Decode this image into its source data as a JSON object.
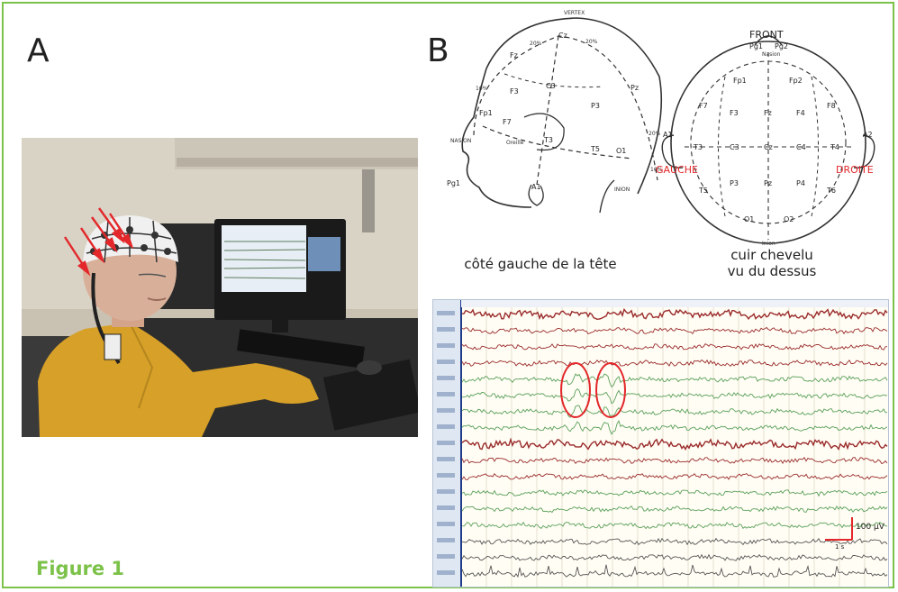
{
  "panels": {
    "a_label": "A",
    "b_label": "B"
  },
  "caption": "Figure 1",
  "side_view": {
    "caption": "côté gauche de la tête",
    "labels": [
      "VERTEX",
      "NASION",
      "INION",
      "Oreille"
    ],
    "percent_marks": [
      "10%",
      "20%",
      "20%",
      "20%",
      "10%"
    ],
    "electrodes": [
      "Fz",
      "Cz",
      "Pz",
      "F3",
      "C3",
      "P3",
      "Fp1",
      "F7",
      "T3",
      "T5",
      "O1",
      "A1",
      "Pg1"
    ]
  },
  "top_view": {
    "front_label": "FRONT",
    "left_label": "GAUCHE",
    "right_label": "DROITE",
    "caption_line1": "cuir chevelu",
    "caption_line2": "vu du dessus",
    "inion_label": "Inion",
    "nasion_label": "Nasion",
    "electrodes": [
      "Pg1",
      "Pg2",
      "Fp1",
      "Fp2",
      "F7",
      "F3",
      "Fz",
      "F4",
      "F8",
      "A1",
      "T3",
      "C3",
      "Cz",
      "C4",
      "T4",
      "A2",
      "T5",
      "P3",
      "Pz",
      "P4",
      "T6",
      "O1",
      "O2"
    ]
  },
  "eeg": {
    "scale_amplitude": "100 µV",
    "scale_time": "1 s",
    "colors": {
      "red_trace": "#9a2b2b",
      "green_trace": "#5aa05a",
      "dark_trace": "#555555",
      "highlight": "#e3272a",
      "channel_panel": "#dfe7f2",
      "divider": "#1f3b8a"
    },
    "channel_count": 17
  },
  "colors": {
    "frame": "#7cc24a",
    "caption": "#7cc24a",
    "arrows": "#e3272a"
  }
}
